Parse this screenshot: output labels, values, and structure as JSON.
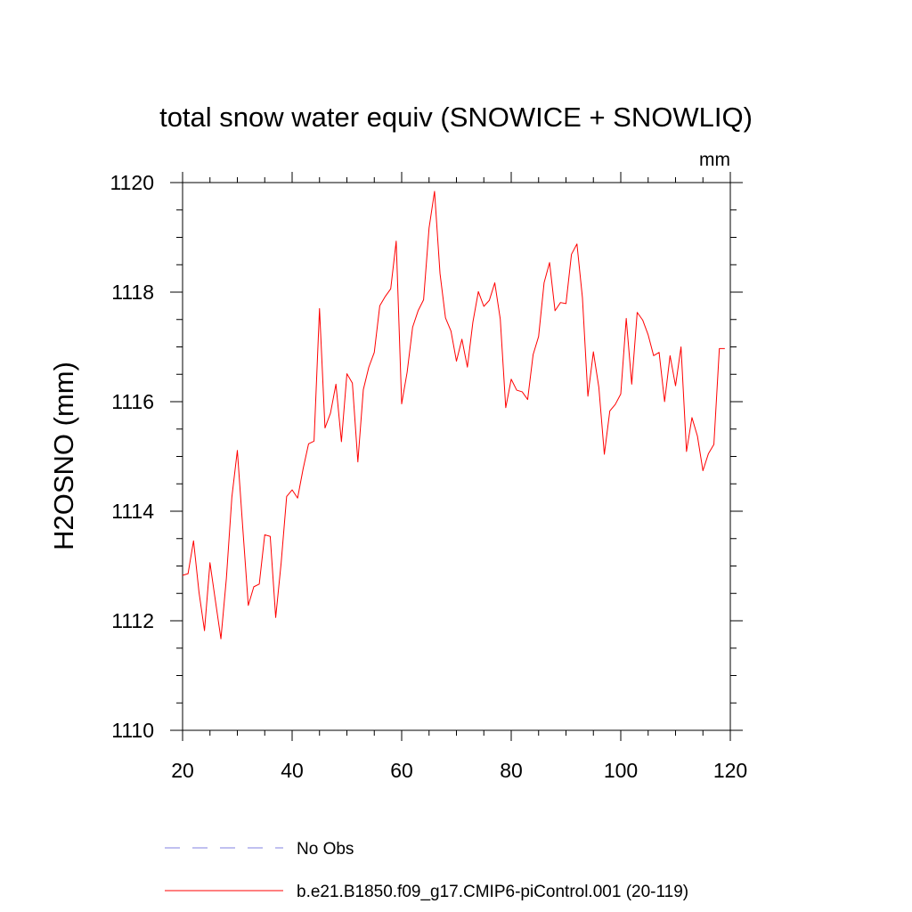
{
  "chart_data": {
    "type": "line",
    "title": "total snow water equiv (SNOWICE + SNOWLIQ)",
    "units": "mm",
    "xlabel": "",
    "ylabel": "H2OSNO  (mm)",
    "xlim": [
      20,
      120
    ],
    "ylim": [
      1110,
      1120
    ],
    "x_ticks": [
      20,
      40,
      60,
      80,
      100,
      120
    ],
    "y_ticks": [
      1110,
      1112,
      1114,
      1116,
      1118,
      1120
    ],
    "x_tick_labels": [
      "20",
      "40",
      "60",
      "80",
      "100",
      "120"
    ],
    "y_tick_labels": [
      "1110",
      "1112",
      "1114",
      "1116",
      "1118",
      "1120"
    ],
    "grid": false,
    "legend_placement": "bottom",
    "series": [
      {
        "name": "No Obs",
        "color": "#8080e0",
        "style": "dashed",
        "x": [],
        "y": []
      },
      {
        "name": "b.e21.B1850.f09_g17.CMIP6-piControl.001 (20-119)",
        "color": "#ff0000",
        "style": "solid",
        "x": [
          20,
          21,
          22,
          23,
          24,
          25,
          26,
          27,
          28,
          29,
          30,
          31,
          32,
          33,
          34,
          35,
          36,
          37,
          38,
          39,
          40,
          41,
          42,
          43,
          44,
          45,
          46,
          47,
          48,
          49,
          50,
          51,
          52,
          53,
          54,
          55,
          56,
          57,
          58,
          59,
          60,
          61,
          62,
          63,
          64,
          65,
          66,
          67,
          68,
          69,
          70,
          71,
          72,
          73,
          74,
          75,
          76,
          77,
          78,
          79,
          80,
          81,
          82,
          83,
          84,
          85,
          86,
          87,
          88,
          89,
          90,
          91,
          92,
          93,
          94,
          95,
          96,
          97,
          98,
          99,
          100,
          101,
          102,
          103,
          104,
          105,
          106,
          107,
          108,
          109,
          110,
          111,
          112,
          113,
          114,
          115,
          116,
          117,
          118,
          119
        ],
        "y": [
          1112.83,
          1112.86,
          1113.46,
          1112.52,
          1111.82,
          1113.06,
          1112.36,
          1111.67,
          1112.78,
          1114.26,
          1115.11,
          1113.68,
          1112.28,
          1112.62,
          1112.67,
          1113.57,
          1113.54,
          1112.06,
          1113.06,
          1114.27,
          1114.39,
          1114.24,
          1114.77,
          1115.23,
          1115.28,
          1117.7,
          1115.52,
          1115.79,
          1116.32,
          1115.27,
          1116.51,
          1116.34,
          1114.9,
          1116.22,
          1116.63,
          1116.9,
          1117.75,
          1117.92,
          1118.06,
          1118.93,
          1115.96,
          1116.54,
          1117.36,
          1117.66,
          1117.86,
          1119.17,
          1119.84,
          1118.34,
          1117.53,
          1117.29,
          1116.74,
          1117.14,
          1116.63,
          1117.45,
          1118.01,
          1117.74,
          1117.85,
          1118.17,
          1117.51,
          1115.89,
          1116.41,
          1116.21,
          1116.18,
          1116.04,
          1116.86,
          1117.19,
          1118.17,
          1118.54,
          1117.66,
          1117.81,
          1117.79,
          1118.69,
          1118.88,
          1117.9,
          1116.1,
          1116.91,
          1116.26,
          1115.04,
          1115.83,
          1115.95,
          1116.14,
          1117.52,
          1116.32,
          1117.63,
          1117.49,
          1117.22,
          1116.84,
          1116.9,
          1116.0,
          1116.84,
          1116.29,
          1117.0,
          1115.09,
          1115.71,
          1115.37,
          1114.74,
          1115.05,
          1115.22,
          1116.97,
          1116.97
        ]
      }
    ]
  }
}
